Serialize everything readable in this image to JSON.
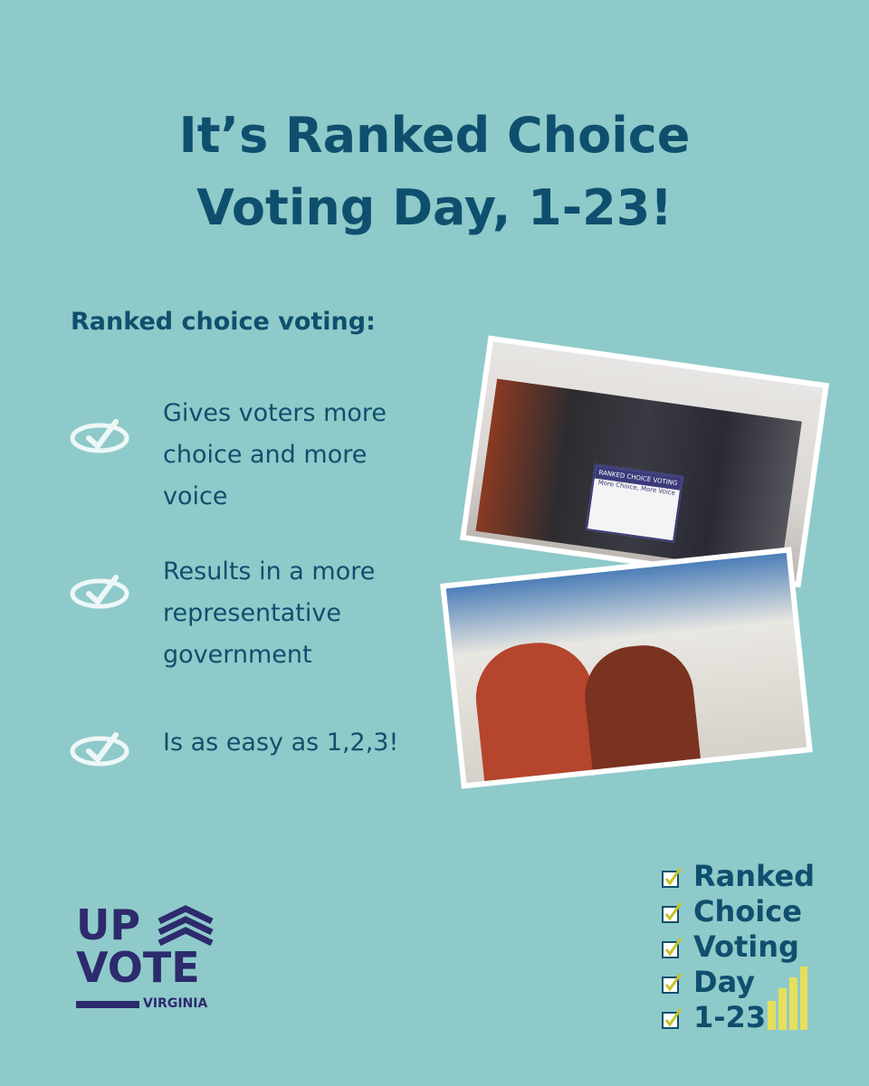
{
  "title": [
    "It’s Ranked Choice",
    "Voting Day, 1-23!"
  ],
  "subheading": "Ranked choice voting:",
  "bullets": [
    "Gives voters more choice and more voice",
    "Results in a more representative government",
    "Is as easy as 1,2,3!"
  ],
  "photo_sign": {
    "heading": "RANKED CHOICE VOTING",
    "tagline": "More Choice, More Voice"
  },
  "logo": {
    "line1": "UP",
    "line2": "VOTE",
    "line3": "VIRGINIA"
  },
  "checklist": [
    "Ranked",
    "Choice",
    "Voting",
    "Day",
    "1-23"
  ]
}
